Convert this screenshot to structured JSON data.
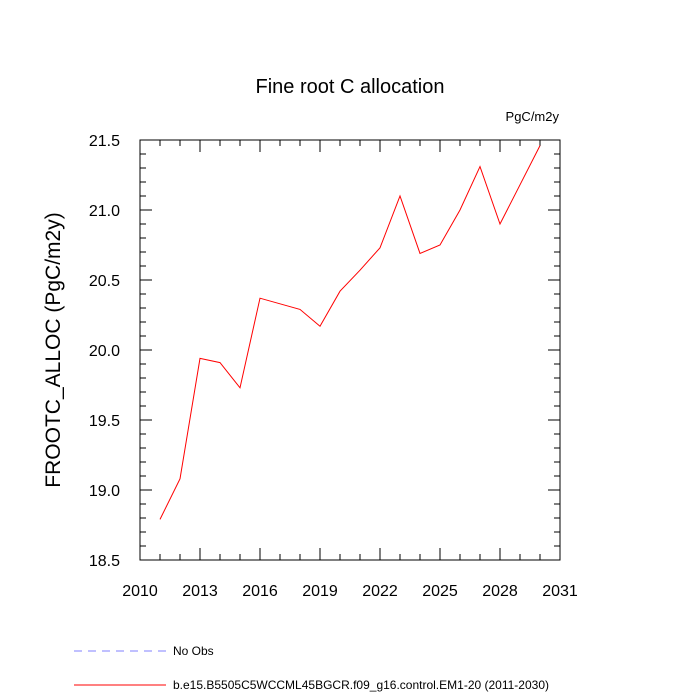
{
  "chart_data": {
    "type": "line",
    "title": "Fine root C allocation",
    "units_label": "PgC/m2y",
    "ylabel": "FROOTC_ALLOC  (PgC/m2y)",
    "xlabel": "",
    "xlim": [
      2010,
      2031
    ],
    "ylim": [
      18.5,
      21.5
    ],
    "x_ticks": [
      2010,
      2013,
      2016,
      2019,
      2022,
      2025,
      2028,
      2031
    ],
    "y_ticks": [
      "18.5",
      "19.0",
      "19.5",
      "20.0",
      "20.5",
      "21.0",
      "21.5"
    ],
    "grid": false,
    "series": [
      {
        "name": "b.e15.B5505C5WCCML45BGCR.f09_g16.control.EM1-20 (2011-2030)",
        "color": "#ff0000",
        "x": [
          2011,
          2012,
          2013,
          2014,
          2015,
          2016,
          2017,
          2018,
          2019,
          2020,
          2021,
          2022,
          2023,
          2024,
          2025,
          2026,
          2027,
          2028,
          2029,
          2030
        ],
        "y": [
          18.79,
          19.08,
          19.94,
          19.91,
          19.73,
          20.37,
          20.33,
          20.29,
          20.17,
          20.42,
          20.57,
          20.73,
          21.1,
          20.69,
          20.75,
          21.0,
          21.31,
          20.9,
          21.18,
          21.46
        ]
      }
    ],
    "legend": [
      {
        "label": "No Obs",
        "color": "#8080ff",
        "style": "dashed"
      },
      {
        "label": "b.e15.B5505C5WCCML45BGCR.f09_g16.control.EM1-20 (2011-2030)",
        "color": "#ff0000",
        "style": "solid"
      }
    ],
    "legend_position": "bottom-left"
  }
}
